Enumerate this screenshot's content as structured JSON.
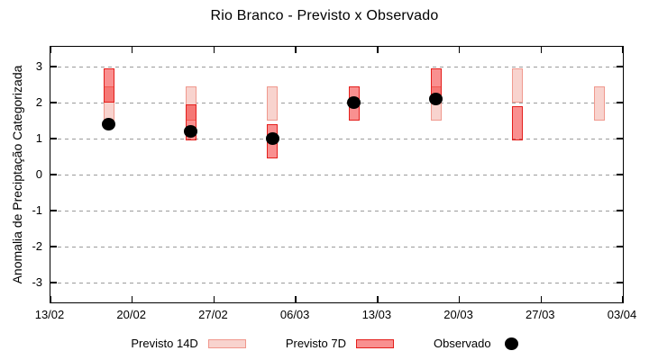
{
  "chart_data": {
    "type": "rangebar+scatter",
    "title": "Rio Branco - Previsto x Observado",
    "ylabel": "Anomalia de Preciptação Categorizada",
    "ylim": [
      -3.55,
      3.55
    ],
    "y_ticks": [
      3,
      2,
      1,
      0,
      -1,
      -2,
      -3
    ],
    "x_total_days": 49,
    "x_ticks": [
      {
        "day": 0,
        "label": "13/02"
      },
      {
        "day": 7,
        "label": "20/02"
      },
      {
        "day": 14,
        "label": "27/02"
      },
      {
        "day": 21,
        "label": "06/03"
      },
      {
        "day": 28,
        "label": "13/03"
      },
      {
        "day": 35,
        "label": "20/03"
      },
      {
        "day": 42,
        "label": "27/03"
      },
      {
        "day": 49,
        "label": "03/04"
      }
    ],
    "grid": true,
    "legend_position": "bottom-center",
    "series": [
      {
        "name": "Previsto 14D",
        "type": "range-bar",
        "ranges": [
          {
            "date": "18/02",
            "day": 5,
            "low": 1.5,
            "high": 2.45
          },
          {
            "date": "25/02",
            "day": 12,
            "low": 1.5,
            "high": 2.45
          },
          {
            "date": "04/03",
            "day": 19,
            "low": 1.5,
            "high": 2.45
          },
          {
            "date": "18/03",
            "day": 33,
            "low": 1.5,
            "high": 2.45
          },
          {
            "date": "25/03",
            "day": 40,
            "low": 2.0,
            "high": 2.95
          },
          {
            "date": "01/04",
            "day": 47,
            "low": 1.5,
            "high": 2.45
          }
        ]
      },
      {
        "name": "Previsto 7D",
        "type": "range-bar",
        "ranges": [
          {
            "date": "18/02",
            "day": 5,
            "low": 2.0,
            "high": 2.95
          },
          {
            "date": "25/02",
            "day": 12,
            "low": 0.95,
            "high": 1.95
          },
          {
            "date": "04/03",
            "day": 19,
            "low": 0.45,
            "high": 1.4
          },
          {
            "date": "11/03",
            "day": 26,
            "low": 1.5,
            "high": 2.45
          },
          {
            "date": "18/03",
            "day": 33,
            "low": 2.0,
            "high": 2.95
          },
          {
            "date": "25/03",
            "day": 40,
            "low": 0.95,
            "high": 1.9
          }
        ]
      },
      {
        "name": "Observado",
        "type": "scatter",
        "points": [
          {
            "date": "18/02",
            "day": 5,
            "value": 1.4
          },
          {
            "date": "25/02",
            "day": 12,
            "value": 1.2
          },
          {
            "date": "04/03",
            "day": 19,
            "value": 1.0
          },
          {
            "date": "11/03",
            "day": 26,
            "value": 2.0
          },
          {
            "date": "18/03",
            "day": 33,
            "value": 2.1
          }
        ]
      }
    ],
    "colors": {
      "p14_fill": "#f8d3ce",
      "p14_border": "#f0998e",
      "p7_fill": "#f68f8d",
      "p7_border": "#e41f1c",
      "observed": "#000000",
      "grid": "#9b9b9b",
      "axis": "#000000"
    }
  }
}
